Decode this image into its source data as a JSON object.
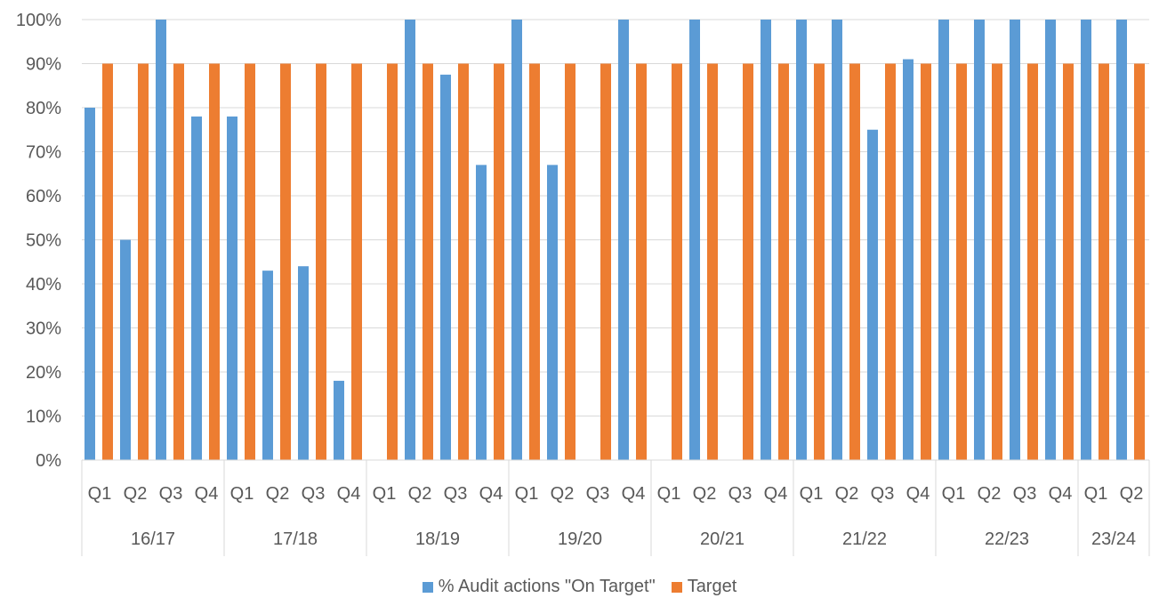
{
  "chart_data": {
    "type": "bar",
    "title": "",
    "xlabel": "",
    "ylabel": "",
    "ylim": [
      0,
      1
    ],
    "yticks": [
      "0%",
      "10%",
      "20%",
      "30%",
      "40%",
      "50%",
      "60%",
      "70%",
      "80%",
      "90%",
      "100%"
    ],
    "grid": true,
    "legend_position": "bottom",
    "groups": [
      {
        "label": "16/17",
        "quarters": [
          "Q1",
          "Q2",
          "Q3",
          "Q4"
        ]
      },
      {
        "label": "17/18",
        "quarters": [
          "Q1",
          "Q2",
          "Q3",
          "Q4"
        ]
      },
      {
        "label": "18/19",
        "quarters": [
          "Q1",
          "Q2",
          "Q3",
          "Q4"
        ]
      },
      {
        "label": "19/20",
        "quarters": [
          "Q1",
          "Q2",
          "Q3",
          "Q4"
        ]
      },
      {
        "label": "20/21",
        "quarters": [
          "Q1",
          "Q2",
          "Q3",
          "Q4"
        ]
      },
      {
        "label": "21/22",
        "quarters": [
          "Q1",
          "Q2",
          "Q3",
          "Q4"
        ]
      },
      {
        "label": "22/23",
        "quarters": [
          "Q1",
          "Q2",
          "Q3",
          "Q4"
        ]
      },
      {
        "label": "23/24",
        "quarters": [
          "Q1",
          "Q2"
        ]
      }
    ],
    "series": [
      {
        "name": "% Audit actions \"On Target\"",
        "color": "#5B9BD5",
        "values": [
          0.8,
          0.5,
          1.0,
          0.78,
          0.78,
          0.43,
          0.44,
          0.18,
          null,
          1.0,
          0.875,
          0.67,
          1.0,
          0.67,
          null,
          1.0,
          null,
          1.0,
          null,
          1.0,
          1.0,
          1.0,
          0.75,
          0.91,
          1.0,
          1.0,
          1.0,
          1.0,
          1.0,
          1.0
        ]
      },
      {
        "name": "Target",
        "color": "#ED7D31",
        "values": [
          0.9,
          0.9,
          0.9,
          0.9,
          0.9,
          0.9,
          0.9,
          0.9,
          0.9,
          0.9,
          0.9,
          0.9,
          0.9,
          0.9,
          0.9,
          0.9,
          0.9,
          0.9,
          0.9,
          0.9,
          0.9,
          0.9,
          0.9,
          0.9,
          0.9,
          0.9,
          0.9,
          0.9,
          0.9,
          0.9
        ]
      }
    ]
  }
}
